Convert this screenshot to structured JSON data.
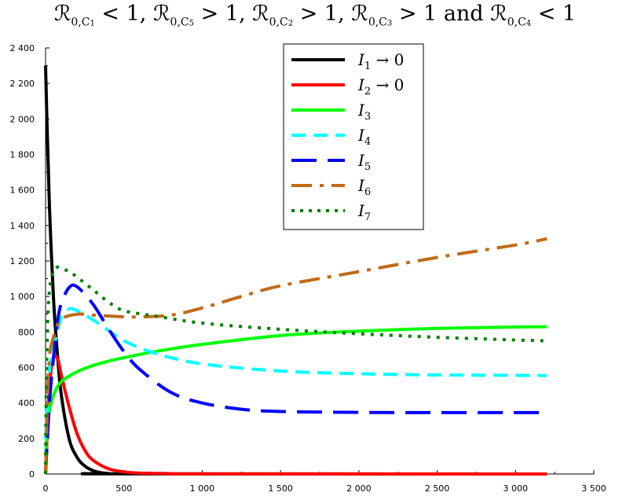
{
  "chart_data": {
    "type": "line",
    "title_parts": [
      {
        "t": "ℛ"
      },
      {
        "sub": "0,C"
      },
      {
        "sub2": "1"
      },
      {
        "t": " < 1,  ℛ"
      },
      {
        "sub": "0,C"
      },
      {
        "sub2": "5"
      },
      {
        "t": " > 1,  ℛ"
      },
      {
        "sub": "0,C"
      },
      {
        "sub2": "2"
      },
      {
        "t": " > 1,  ℛ"
      },
      {
        "sub": "0,C"
      },
      {
        "sub2": "3"
      },
      {
        "t": " > 1 and  ℛ"
      },
      {
        "sub": "0,C"
      },
      {
        "sub2": "4"
      },
      {
        "t": " < 1"
      }
    ],
    "xlim": [
      0,
      3500
    ],
    "ylim": [
      0,
      2400
    ],
    "xticks": [
      0,
      500,
      1000,
      1500,
      2000,
      2500,
      3000,
      3500
    ],
    "yticks": [
      0,
      200,
      400,
      600,
      800,
      1000,
      1200,
      1400,
      1600,
      1800,
      2000,
      2200,
      2400
    ],
    "xtick_labels": [
      "0",
      "500",
      "1 000",
      "1 500",
      "2 000",
      "2 500",
      "3 000",
      "3 500"
    ],
    "ytick_labels": [
      "0",
      "200",
      "400",
      "600",
      "800",
      "1 000",
      "1 200",
      "1 400",
      "1 600",
      "1 800",
      "2 000",
      "2 200",
      "2 400"
    ],
    "legend_position": "top-center",
    "grid": false,
    "series": [
      {
        "name": "I1 → 0",
        "label_main": "I",
        "label_sub": "1",
        "label_tail": " → 0",
        "color": "#000000",
        "dash": "solid",
        "x": [
          0,
          10,
          25,
          50,
          75,
          100,
          150,
          200,
          250,
          300,
          350,
          400,
          450,
          3200
        ],
        "y": [
          2300,
          1950,
          1500,
          1000,
          680,
          450,
          200,
          95,
          45,
          20,
          8,
          3,
          1,
          0
        ]
      },
      {
        "name": "I2 → 0",
        "label_main": "I",
        "label_sub": "2",
        "label_tail": " → 0",
        "color": "#ff0000",
        "dash": "solid",
        "x": [
          0,
          20,
          40,
          60,
          80,
          100,
          150,
          200,
          250,
          300,
          400,
          500,
          600,
          800,
          1000,
          3200
        ],
        "y": [
          0,
          420,
          620,
          665,
          640,
          560,
          380,
          230,
          135,
          80,
          30,
          12,
          5,
          2,
          1,
          0
        ]
      },
      {
        "name": "I3",
        "label_main": "I",
        "label_sub": "3",
        "label_tail": "",
        "color": "#00ff00",
        "dash": "solid",
        "x": [
          0,
          20,
          50,
          100,
          200,
          300,
          400,
          500,
          700,
          1000,
          1500,
          2000,
          2500,
          3000,
          3200
        ],
        "y": [
          100,
          330,
          440,
          520,
          575,
          610,
          635,
          655,
          690,
          730,
          780,
          805,
          820,
          828,
          830
        ]
      },
      {
        "name": "I4",
        "label_main": "I",
        "label_sub": "4",
        "label_tail": "",
        "color": "#00ffff",
        "dash": "dashed",
        "x": [
          0,
          25,
          50,
          75,
          100,
          150,
          200,
          300,
          400,
          500,
          700,
          1000,
          1500,
          2000,
          2500,
          3200
        ],
        "y": [
          200,
          580,
          700,
          800,
          880,
          930,
          920,
          870,
          810,
          750,
          680,
          620,
          580,
          565,
          558,
          555
        ]
      },
      {
        "name": "I5",
        "label_main": "I",
        "label_sub": "5",
        "label_tail": "",
        "color": "#0000ff",
        "dash": "longdash",
        "x": [
          0,
          25,
          50,
          75,
          100,
          150,
          200,
          300,
          400,
          500,
          600,
          800,
          1000,
          1250,
          1500,
          2000,
          2500,
          3200
        ],
        "y": [
          0,
          400,
          650,
          850,
          960,
          1050,
          1055,
          960,
          820,
          690,
          590,
          460,
          400,
          365,
          352,
          347,
          346,
          346
        ]
      },
      {
        "name": "I6",
        "label_main": "I",
        "label_sub": "6",
        "label_tail": "",
        "color": "#c06a15",
        "dash": "dashdot",
        "x": [
          0,
          20,
          50,
          100,
          200,
          300,
          400,
          500,
          600,
          800,
          1000,
          1250,
          1500,
          2000,
          2500,
          3000,
          3200
        ],
        "y": [
          0,
          600,
          770,
          870,
          900,
          895,
          890,
          885,
          885,
          895,
          935,
          1000,
          1060,
          1140,
          1220,
          1290,
          1325
        ]
      },
      {
        "name": "I7",
        "label_main": "I",
        "label_sub": "7",
        "label_tail": "",
        "color": "#008000",
        "dash": "dotted",
        "x": [
          0,
          5,
          15,
          30,
          50,
          75,
          100,
          150,
          200,
          300,
          400,
          500,
          700,
          1000,
          1500,
          2000,
          2500,
          3000,
          3200
        ],
        "y": [
          0,
          500,
          900,
          1070,
          1140,
          1165,
          1160,
          1140,
          1110,
          1040,
          970,
          920,
          890,
          850,
          815,
          790,
          770,
          755,
          750
        ]
      }
    ]
  }
}
